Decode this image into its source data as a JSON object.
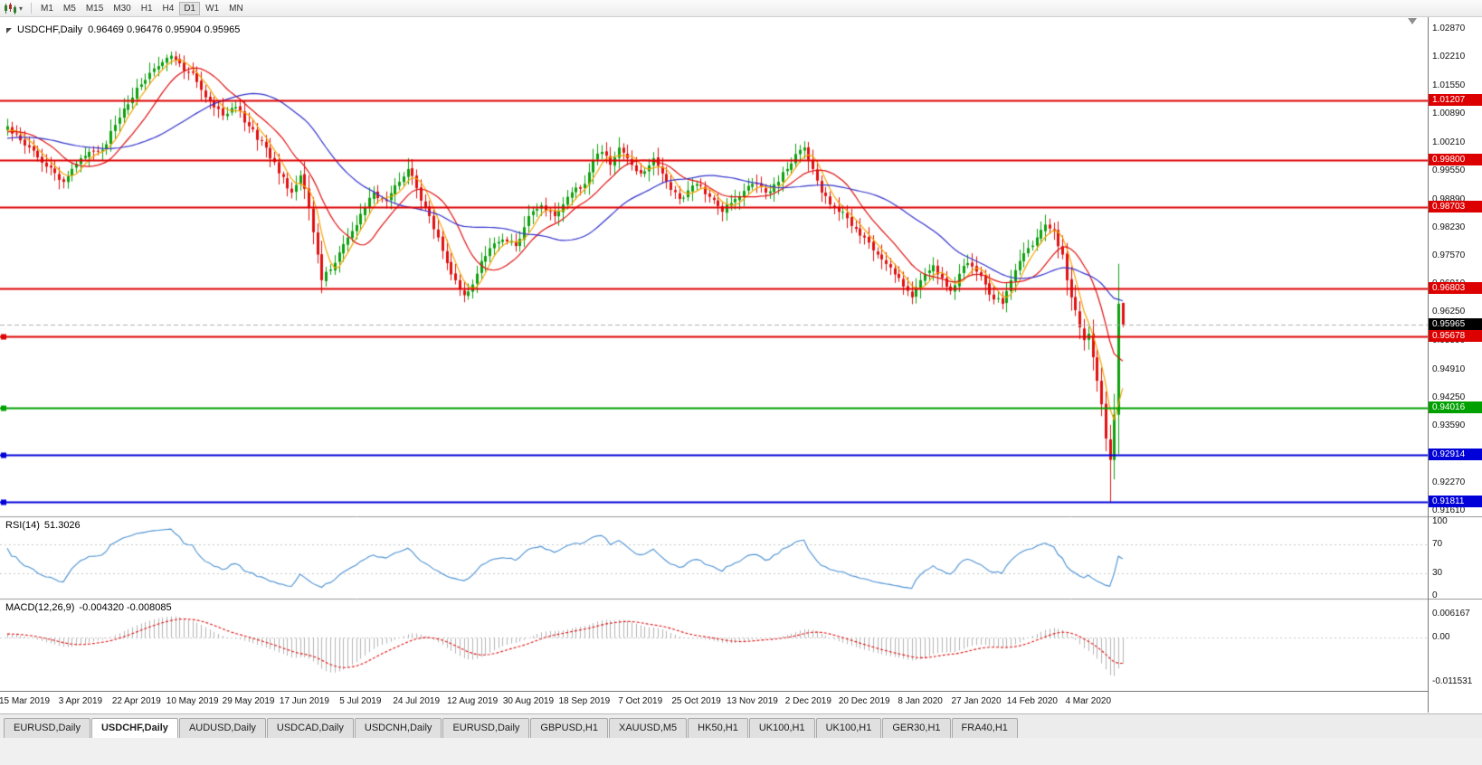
{
  "toolbar": {
    "timeframes": [
      "M1",
      "M5",
      "M15",
      "M30",
      "H1",
      "H4",
      "D1",
      "W1",
      "MN"
    ],
    "active_timeframe": "D1"
  },
  "chart": {
    "symbol": "USDCHF,Daily",
    "ohlc": "0.96469 0.96476 0.95904 0.95965",
    "current_price": {
      "value": 0.95965,
      "label": "0.95965",
      "badge_color": "#000000"
    },
    "hlines": [
      {
        "price": 1.01207,
        "label": "1.01207",
        "color": "#DD0000",
        "handle": false
      },
      {
        "price": 0.998,
        "label": "0.99800",
        "color": "#DD0000",
        "handle": false
      },
      {
        "price": 0.98703,
        "label": "0.98703",
        "color": "#DD0000",
        "handle": false
      },
      {
        "price": 0.96803,
        "label": "0.96803",
        "color": "#DD0000",
        "handle": false
      },
      {
        "price": 0.95678,
        "label": "0.95678",
        "color": "#DD0000",
        "handle": true
      },
      {
        "price": 0.94016,
        "label": "0.94016",
        "color": "#00A000",
        "handle": true
      },
      {
        "price": 0.92914,
        "label": "0.92914",
        "color": "#0000D8",
        "handle": true
      },
      {
        "price": 0.91811,
        "label": "0.91811",
        "color": "#0000D8",
        "handle": true
      }
    ],
    "date_labels": [
      "15 Mar 2019",
      "3 Apr 2019",
      "22 Apr 2019",
      "10 May 2019",
      "29 May 2019",
      "17 Jun 2019",
      "5 Jul 2019",
      "24 Jul 2019",
      "12 Aug 2019",
      "30 Aug 2019",
      "18 Sep 2019",
      "7 Oct 2019",
      "25 Oct 2019",
      "13 Nov 2019",
      "2 Dec 2019",
      "20 Dec 2019",
      "8 Jan 2020",
      "27 Jan 2020",
      "14 Feb 2020",
      "4 Mar 2020"
    ],
    "axis": {
      "price_labels": [
        "1.02870",
        "1.02210",
        "1.01550",
        "1.00890",
        "1.00210",
        "0.99550",
        "0.98890",
        "0.98230",
        "0.97570",
        "0.96910",
        "0.96250",
        "0.95590",
        "0.94910",
        "0.94250",
        "0.93590",
        "0.92930",
        "0.92270",
        "0.91610"
      ],
      "rsi_labels": [
        "100",
        "70",
        "30",
        "0"
      ],
      "macd_labels": [
        "0.006167",
        "0.00",
        "-0.011531"
      ]
    }
  },
  "indicators": {
    "rsi": {
      "name": "RSI(14)",
      "value": "51.3026",
      "color": "#4A90D2",
      "levels": [
        70,
        30
      ]
    },
    "macd": {
      "name": "MACD(12,26,9)",
      "value": "-0.004320 -0.008085",
      "histogram_color": "#B4B4B4",
      "signal_color": "#E01010"
    }
  },
  "tabs": {
    "items": [
      "EURUSD,Daily",
      "USDCHF,Daily",
      "AUDUSD,Daily",
      "USDCAD,Daily",
      "USDCNH,Daily",
      "EURUSD,Daily",
      "GBPUSD,H1",
      "XAUUSD,M5",
      "HK50,H1",
      "UK100,H1",
      "UK100,H1",
      "GER30,H1",
      "FRA40,H1"
    ],
    "active_index": 1
  },
  "chart_data": {
    "type": "candlestick",
    "symbol": "USDCHF",
    "timeframe": "Daily",
    "candle_count": 260,
    "price_scale": {
      "top": 1.0315,
      "bottom": 0.9148
    },
    "colors": {
      "up": "#0EA00E",
      "down": "#E01010"
    },
    "moving_averages": [
      {
        "period": 5,
        "color": "#F5A300"
      },
      {
        "period": 13,
        "color": "#E01010"
      },
      {
        "period": 34,
        "color": "#3333CC"
      }
    ],
    "anchors": [
      [
        0,
        1.006
      ],
      [
        4,
        1.0015
      ],
      [
        8,
        0.9975
      ],
      [
        13,
        0.993
      ],
      [
        17,
        0.9985
      ],
      [
        22,
        1.0005
      ],
      [
        26,
        1.008
      ],
      [
        30,
        1.015
      ],
      [
        34,
        1.0195
      ],
      [
        38,
        1.0225
      ],
      [
        41,
        1.019
      ],
      [
        43,
        1.0185
      ],
      [
        45,
        1.0145
      ],
      [
        47,
        1.012
      ],
      [
        50,
        1.0085
      ],
      [
        53,
        1.0105
      ],
      [
        56,
        1.006
      ],
      [
        60,
        1.001
      ],
      [
        63,
        0.995
      ],
      [
        66,
        0.9905
      ],
      [
        68,
        0.9945
      ],
      [
        70,
        0.987
      ],
      [
        72,
        0.976
      ],
      [
        73,
        0.97
      ],
      [
        75,
        0.9725
      ],
      [
        77,
        0.9765
      ],
      [
        80,
        0.9815
      ],
      [
        82,
        0.9855
      ],
      [
        85,
        0.9905
      ],
      [
        88,
        0.9885
      ],
      [
        91,
        0.993
      ],
      [
        93,
        0.996
      ],
      [
        95,
        0.9915
      ],
      [
        97,
        0.987
      ],
      [
        100,
        0.98
      ],
      [
        102,
        0.974
      ],
      [
        104,
        0.97
      ],
      [
        106,
        0.9665
      ],
      [
        108,
        0.969
      ],
      [
        110,
        0.9745
      ],
      [
        112,
        0.9775
      ],
      [
        115,
        0.9795
      ],
      [
        118,
        0.978
      ],
      [
        121,
        0.985
      ],
      [
        124,
        0.9875
      ],
      [
        127,
        0.985
      ],
      [
        130,
        0.9895
      ],
      [
        134,
        0.9925
      ],
      [
        136,
        0.998
      ],
      [
        138,
        1.0
      ],
      [
        140,
        0.997
      ],
      [
        142,
        1.001
      ],
      [
        144,
        0.9985
      ],
      [
        147,
        0.995
      ],
      [
        150,
        0.9985
      ],
      [
        153,
        0.993
      ],
      [
        156,
        0.989
      ],
      [
        160,
        0.9925
      ],
      [
        163,
        0.9895
      ],
      [
        166,
        0.986
      ],
      [
        169,
        0.989
      ],
      [
        173,
        0.9925
      ],
      [
        176,
        0.9905
      ],
      [
        179,
        0.993
      ],
      [
        181,
        0.996
      ],
      [
        183,
        0.9995
      ],
      [
        185,
        1.001
      ],
      [
        187,
        0.996
      ],
      [
        189,
        0.9905
      ],
      [
        192,
        0.987
      ],
      [
        195,
        0.9845
      ],
      [
        197,
        0.982
      ],
      [
        199,
        0.98
      ],
      [
        202,
        0.976
      ],
      [
        205,
        0.973
      ],
      [
        208,
        0.9685
      ],
      [
        210,
        0.966
      ],
      [
        212,
        0.97
      ],
      [
        215,
        0.9735
      ],
      [
        217,
        0.9705
      ],
      [
        219,
        0.9675
      ],
      [
        221,
        0.9715
      ],
      [
        223,
        0.974
      ],
      [
        225,
        0.972
      ],
      [
        227,
        0.969
      ],
      [
        229,
        0.9655
      ],
      [
        231,
        0.9645
      ],
      [
        233,
        0.97
      ],
      [
        235,
        0.9745
      ],
      [
        237,
        0.9775
      ],
      [
        239,
        0.98
      ],
      [
        241,
        0.983
      ],
      [
        243,
        0.9815
      ],
      [
        245,
        0.976
      ],
      [
        246,
        0.97
      ],
      [
        247,
        0.966
      ],
      [
        248,
        0.963
      ],
      [
        249,
        0.959
      ],
      [
        250,
        0.956
      ],
      [
        251,
        0.9575
      ],
      [
        252,
        0.952
      ],
      [
        253,
        0.9465
      ],
      [
        254,
        0.941
      ],
      [
        255,
        0.933
      ],
      [
        256,
        0.928
      ],
      [
        257,
        0.9385
      ],
      [
        258,
        0.9645
      ],
      [
        259,
        0.95965
      ]
    ],
    "overrides": {
      "255": {
        "low": 0.93
      },
      "256": {
        "low": 0.9182
      },
      "259": {
        "open": 0.96469,
        "high": 0.96476,
        "low": 0.95904,
        "close": 0.95965
      }
    },
    "date_label_first": 4,
    "date_label_step": 13
  }
}
